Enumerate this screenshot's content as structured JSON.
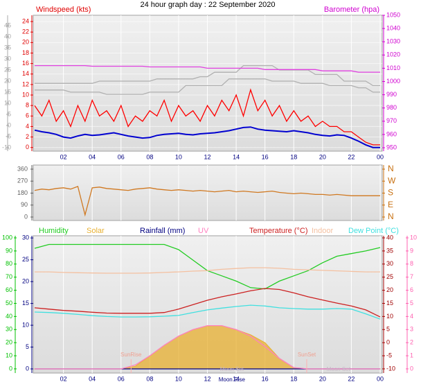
{
  "chart_data": [
    {
      "type": "line",
      "title": "24 hour graph day : 22 September 2020",
      "ylabel": "Windspeed (kts)",
      "y2label": "Barometer (hpa)",
      "grid": true,
      "xlim": [
        0,
        24
      ],
      "xticks": [
        {
          "value": 2,
          "label": "02"
        },
        {
          "value": 4,
          "label": "04"
        },
        {
          "value": 6,
          "label": "06"
        },
        {
          "value": 8,
          "label": "08"
        },
        {
          "value": 10,
          "label": "10"
        },
        12,
        14,
        16,
        18,
        20,
        22,
        {
          "value": 24,
          "label": "00"
        }
      ],
      "ylim": [
        -0.7,
        25.2
      ],
      "yticks": [
        0,
        2,
        4,
        6,
        8,
        10,
        12,
        14,
        16,
        18,
        20,
        22,
        24
      ],
      "ycolor": "#e00000",
      "y2lim": [
        947.4,
        1050
      ],
      "y2ticks": [
        950,
        960,
        970,
        980,
        990,
        1000,
        1010,
        1020,
        1030,
        1040,
        1050
      ],
      "y2color": "#d000d0",
      "y3lim": [
        -11.6,
        49.7
      ],
      "y3ticks": [
        -10,
        -5,
        0,
        5,
        10,
        15,
        20,
        25,
        30,
        35,
        40,
        45
      ],
      "y3color": "#a8a8a8",
      "x": [
        0,
        0.5,
        1,
        1.5,
        2,
        2.5,
        3,
        3.5,
        4,
        4.5,
        5,
        5.5,
        6,
        6.5,
        7,
        7.5,
        8,
        8.5,
        9,
        9.5,
        10,
        10.5,
        11,
        11.5,
        12,
        12.5,
        13,
        13.5,
        14,
        14.5,
        15,
        15.5,
        16,
        16.5,
        17,
        17.5,
        18,
        18.5,
        19,
        19.5,
        20,
        20.5,
        21,
        21.5,
        22,
        22.5,
        23,
        23.5,
        24
      ],
      "series": [
        {
          "color": "#b0b0b0",
          "axis": "y3",
          "values": [
            19,
            19,
            19,
            19,
            19,
            19,
            19,
            19,
            19,
            20,
            20,
            20,
            20,
            20,
            20,
            20,
            20,
            21,
            21,
            21,
            21,
            21,
            21,
            22,
            22,
            24,
            24,
            24,
            24,
            27,
            27,
            27,
            27,
            27,
            25,
            25,
            25,
            25,
            25,
            23,
            23,
            23,
            23,
            20,
            20,
            20,
            20,
            18,
            18
          ]
        },
        {
          "color": "#b0b0b0",
          "axis": "y3",
          "values": [
            16,
            16,
            16,
            16,
            16,
            15,
            15,
            15,
            15,
            15,
            14,
            14,
            14,
            14,
            14,
            14,
            15,
            15,
            15,
            15,
            15,
            18,
            18,
            18,
            18,
            18,
            18,
            21,
            21,
            21,
            21,
            21,
            21,
            20,
            20,
            20,
            20,
            19,
            19,
            19,
            19,
            18,
            18,
            18,
            18,
            17,
            17,
            15,
            15
          ]
        },
        {
          "color": "#e040e0",
          "axis": "y2",
          "values": [
            1012,
            1012,
            1012,
            1012,
            1012,
            1012,
            1012,
            1012,
            1011.5,
            1011.5,
            1011.5,
            1011.5,
            1011.5,
            1011.5,
            1011.5,
            1011.5,
            1011,
            1011,
            1011,
            1011,
            1011,
            1011,
            1011,
            1011,
            1010,
            1010,
            1010,
            1010,
            1010,
            1010,
            1010,
            1010,
            1009,
            1009,
            1009,
            1009,
            1009,
            1009,
            1009,
            1009,
            1008,
            1008,
            1008,
            1008,
            1008,
            1007,
            1007,
            1007,
            1007
          ]
        },
        {
          "color": "#ff0000",
          "axis": "y",
          "values": [
            8,
            6,
            9,
            5,
            7,
            4,
            8,
            5,
            9,
            6,
            7,
            5,
            8,
            4,
            6,
            5,
            7,
            6,
            9,
            5,
            8,
            6,
            7,
            5,
            8,
            6,
            9,
            7,
            10,
            6,
            11,
            7,
            9,
            6,
            8,
            5,
            7,
            5,
            6,
            4,
            5,
            4,
            4,
            3,
            3,
            2,
            1,
            0.5,
            0.5
          ]
        },
        {
          "color": "#0000d0",
          "axis": "y",
          "values": [
            3.3,
            3,
            2.8,
            2.5,
            2,
            1.8,
            2.2,
            2.5,
            2.3,
            2.4,
            2.6,
            2.8,
            2.5,
            2.2,
            2,
            1.8,
            1.9,
            2.3,
            2.5,
            2.6,
            2.7,
            2.5,
            2.4,
            2.6,
            2.7,
            2.8,
            3,
            3.2,
            3.5,
            3.8,
            3.9,
            3.5,
            3.3,
            3.2,
            3.1,
            3,
            3.2,
            3,
            2.8,
            2.5,
            2.3,
            2.2,
            2.4,
            2.3,
            1.8,
            1.2,
            0.5,
            0,
            0
          ]
        }
      ]
    },
    {
      "type": "line",
      "xlim": [
        0,
        24
      ],
      "ylim": [
        -26,
        391
      ],
      "yticks": [
        0,
        90,
        180,
        270,
        360
      ],
      "ycolor": "#606060",
      "y2lim": [
        -26,
        391
      ],
      "y2ticks": [
        {
          "value": 360,
          "label": "N"
        },
        {
          "value": 270,
          "label": "W"
        },
        {
          "value": 180,
          "label": "S"
        },
        {
          "value": 90,
          "label": "E"
        },
        {
          "value": 0,
          "label": "N"
        }
      ],
      "y2color": "#c87010",
      "x": [
        0,
        0.5,
        1,
        1.5,
        2,
        2.5,
        3,
        3.5,
        4,
        4.5,
        5,
        5.5,
        6,
        6.5,
        7,
        7.5,
        8,
        8.5,
        9,
        9.5,
        10,
        10.5,
        11,
        11.5,
        12,
        12.5,
        13,
        13.5,
        14,
        14.5,
        15,
        15.5,
        16,
        16.5,
        17,
        17.5,
        18,
        18.5,
        19,
        19.5,
        20,
        20.5,
        21,
        21.5,
        22,
        22.5,
        23,
        23.5,
        24
      ],
      "series": [
        {
          "color": "#d07820",
          "axis": "y",
          "values": [
            200,
            210,
            205,
            215,
            220,
            210,
            230,
            16,
            220,
            225,
            215,
            210,
            205,
            200,
            210,
            215,
            220,
            210,
            205,
            200,
            205,
            200,
            195,
            200,
            195,
            190,
            195,
            200,
            190,
            195,
            190,
            185,
            190,
            195,
            185,
            180,
            175,
            180,
            175,
            170,
            170,
            165,
            170,
            165,
            160,
            160,
            160,
            160,
            160
          ]
        }
      ]
    },
    {
      "type": "line",
      "xlim": [
        0,
        24
      ],
      "xticks": [
        {
          "value": 2,
          "label": "02"
        },
        {
          "value": 4,
          "label": "04"
        },
        {
          "value": 6,
          "label": "06"
        },
        {
          "value": 8,
          "label": "08"
        },
        {
          "value": 10,
          "label": "10"
        },
        12,
        14,
        16,
        18,
        20,
        22,
        {
          "value": 24,
          "label": "00"
        }
      ],
      "ylim": [
        -3.2,
        101.6
      ],
      "yticks": [
        0,
        10,
        20,
        30,
        40,
        50,
        60,
        70,
        80,
        90,
        100
      ],
      "ycolor": "#00c000",
      "y2lim": [
        -11.6,
        40.8
      ],
      "y2ticks": [
        -10,
        -5,
        0,
        5,
        10,
        15,
        20,
        25,
        30,
        35,
        40
      ],
      "y2color": "#a00000",
      "y3lim": [
        -0.95,
        30.5
      ],
      "y3ticks": [
        0,
        5,
        10,
        15,
        20,
        25,
        30
      ],
      "y3color": "#000080",
      "y4lim": [
        -0.32,
        10.16
      ],
      "y4ticks": [
        0,
        1,
        2,
        3,
        4,
        5,
        6,
        7,
        8,
        9,
        10
      ],
      "y4color": "#ff60b0",
      "x": [
        0,
        1,
        2,
        3,
        4,
        5,
        6,
        7,
        8,
        9,
        10,
        11,
        12,
        13,
        14,
        15,
        16,
        17,
        18,
        19,
        20,
        21,
        22,
        23,
        24
      ],
      "series": [
        {
          "name": "Humidity",
          "color": "#22cc22",
          "axis": "y",
          "values": [
            92,
            95,
            95,
            95,
            95,
            95,
            95,
            95,
            95,
            95,
            91,
            83,
            75,
            71,
            67,
            62,
            61,
            67,
            71,
            75,
            81,
            86,
            88,
            90,
            92.6
          ]
        },
        {
          "name": "Solar",
          "color": "#e8b030",
          "axis": "y",
          "area": true,
          "values": [
            0,
            0,
            0,
            0,
            0,
            0,
            0,
            2,
            10,
            18,
            25,
            30,
            33,
            33,
            30,
            26,
            20,
            8,
            1,
            0,
            0,
            0,
            0,
            0,
            0
          ]
        },
        {
          "name": "Rainfall (mm)",
          "color": "#000080",
          "axis": "y3",
          "values": [
            0,
            0,
            0,
            0,
            0,
            0,
            0,
            0,
            0,
            0,
            0,
            0,
            0,
            0,
            0,
            0,
            0,
            0,
            0,
            0,
            0,
            0,
            0,
            0,
            0
          ]
        },
        {
          "name": "UV",
          "color": "#ff80c0",
          "axis": "y4",
          "values": [
            0,
            0,
            0,
            0,
            0,
            0,
            0,
            0.3,
            1,
            1.8,
            2.5,
            3,
            3.3,
            3.3,
            3,
            2.5,
            1.7,
            0.8,
            0.1,
            0,
            0,
            0,
            0,
            0,
            0
          ]
        },
        {
          "name": "Temperature (°C)",
          "color": "#cc2020",
          "axis": "y2",
          "values": [
            13.3,
            12.8,
            12.3,
            12,
            11.6,
            11.3,
            11.2,
            11.2,
            11.2,
            11.5,
            12.8,
            14.5,
            16.2,
            17.5,
            18.6,
            19.8,
            20.7,
            20.3,
            19,
            17.5,
            16.3,
            15.1,
            14,
            12.5,
            9.8
          ]
        },
        {
          "name": "Indoor",
          "color": "#f4c0a0",
          "axis": "y2",
          "values": [
            27,
            27,
            26.8,
            26.7,
            26.6,
            26.5,
            26.5,
            26.5,
            26.6,
            26.8,
            27,
            27.3,
            27.5,
            28,
            28.3,
            28.6,
            28.6,
            28.4,
            28,
            27.8,
            27.6,
            27.4,
            27.2,
            27,
            27
          ]
        },
        {
          "name": "Dew Point (°C)",
          "color": "#40e0e0",
          "axis": "y2",
          "values": [
            11.7,
            11.5,
            11.2,
            10.8,
            10.3,
            10,
            9.8,
            9.8,
            9.9,
            10.1,
            10.4,
            11.5,
            12.5,
            13.2,
            13.8,
            14.3,
            14,
            13.3,
            13,
            12.8,
            12.8,
            13,
            12.8,
            11,
            9
          ]
        }
      ],
      "annotations": [
        {
          "text": "SunRise",
          "x": 6.7
        },
        {
          "text": "SunSet",
          "x": 18.9
        },
        {
          "text": "Moon Rise",
          "x": 13.7
        },
        {
          "text": "Moon Set",
          "x": 13.7
        },
        {
          "text": "Moon Set",
          "x": 21.1
        }
      ]
    }
  ]
}
